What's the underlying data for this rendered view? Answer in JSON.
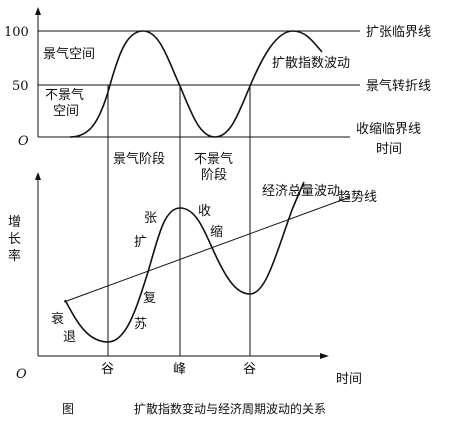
{
  "top_panel": {
    "y_tick_100": "100",
    "y_tick_50": "50",
    "origin": "O",
    "line_expansion": "扩张临界线",
    "line_turning": "景气转折线",
    "line_contraction": "收缩临界线",
    "x_axis_label": "时间",
    "curve_label": "扩散指数波动",
    "zone_boom": "景气空间",
    "zone_nonboom_1": "不景气",
    "zone_nonboom_2": "空间",
    "phase_boom": "景气阶段",
    "phase_nonboom_1": "不景气",
    "phase_nonboom_2": "阶段"
  },
  "bottom_panel": {
    "y_axis_label": [
      "增",
      "长",
      "率"
    ],
    "origin": "O",
    "x_axis_label": "时间",
    "trend_label": "趋势线",
    "curve_label": "经济总量波动",
    "phase_recession": [
      "衰",
      "退"
    ],
    "phase_recovery": [
      "复",
      "苏"
    ],
    "phase_expansion": [
      "张",
      "扩"
    ],
    "phase_contraction": [
      "收",
      "缩"
    ],
    "x_markers": [
      "谷",
      "峰",
      "谷"
    ]
  },
  "caption": {
    "prefix": "图",
    "title": "扩散指数变动与经济周期波动的关系"
  }
}
